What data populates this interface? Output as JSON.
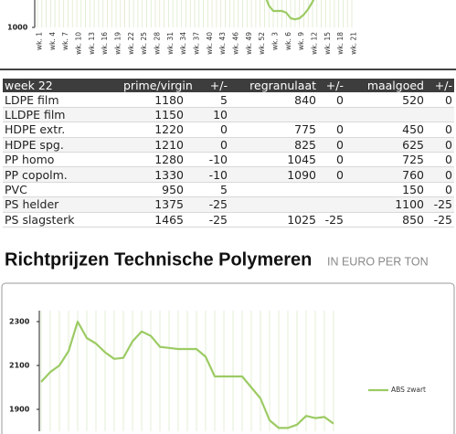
{
  "chart_data": [
    {
      "type": "line",
      "categories": [
        "wk. 1",
        null,
        null,
        "wk. 4",
        null,
        null,
        "wk. 7",
        null,
        null,
        "wk. 10",
        null,
        null,
        "wk. 13",
        null,
        null,
        "wk. 16",
        null,
        null,
        "wk. 19",
        null,
        null,
        "wk. 22",
        null,
        null,
        "wk. 25",
        null,
        null,
        "wk. 28",
        null,
        null,
        "wk. 31",
        null,
        null,
        "wk. 34",
        null,
        null,
        "wk. 37",
        null,
        null,
        "wk. 40",
        null,
        null,
        "wk. 43",
        null,
        null,
        "wk. 46",
        null,
        null,
        "wk. 49",
        null,
        null,
        "wk. 52",
        null,
        null,
        "wk. 3",
        null,
        null,
        "wk. 6",
        null,
        null,
        "wk. 9",
        null,
        null,
        "wk. 12",
        null,
        null,
        "wk. 15",
        null,
        null,
        "wk. 18",
        null,
        null,
        "wk. 21"
      ],
      "series": [
        {
          "color": "#9ccb63",
          "values": [
            null,
            null,
            null,
            null,
            null,
            null,
            null,
            null,
            null,
            null,
            null,
            null,
            null,
            null,
            null,
            null,
            null,
            null,
            null,
            null,
            null,
            null,
            null,
            null,
            null,
            null,
            null,
            null,
            null,
            null,
            null,
            null,
            null,
            null,
            null,
            null,
            null,
            null,
            null,
            null,
            null,
            null,
            null,
            null,
            null,
            null,
            null,
            null,
            null,
            null,
            null,
            null,
            1090,
            1060,
            1045,
            1045,
            1045,
            1040,
            1025,
            1022,
            1025,
            1035,
            1050,
            1070,
            1095,
            null,
            null,
            null,
            null,
            null,
            null,
            null,
            null
          ]
        }
      ],
      "ylim": [
        1000,
        1250
      ],
      "yticks": [
        1000
      ]
    },
    {
      "type": "line",
      "series": [
        {
          "name": "ABS zwart",
          "color": "#9ccb63",
          "values": [
            2025,
            2070,
            2100,
            2165,
            2300,
            2225,
            2200,
            2160,
            2130,
            2135,
            2210,
            2255,
            2235,
            2185,
            2180,
            2175,
            2175,
            2175,
            2140,
            2050,
            2050,
            2050,
            2050,
            2000,
            1950,
            1850,
            1815,
            1815,
            1830,
            1870,
            1860,
            1865,
            1835
          ]
        }
      ],
      "ylim": [
        1800,
        2350
      ],
      "yticks": [
        1900,
        2100,
        2300
      ]
    }
  ],
  "table": {
    "header": [
      "week 22",
      "prime/virgin",
      "+/-",
      "regranulaat",
      "+/-",
      "maalgoed",
      "+/-"
    ],
    "rows": [
      [
        "LDPE film",
        1180,
        5,
        840,
        0,
        520,
        0
      ],
      [
        "LLDPE film",
        1150,
        10,
        null,
        null,
        null,
        null
      ],
      [
        "HDPE extr.",
        1220,
        0,
        775,
        0,
        450,
        0
      ],
      [
        "HDPE spg.",
        1210,
        0,
        825,
        0,
        625,
        0
      ],
      [
        "PP homo",
        1280,
        -10,
        1045,
        0,
        725,
        0
      ],
      [
        "PP copolm.",
        1330,
        -10,
        1090,
        0,
        760,
        0
      ],
      [
        "PVC",
        950,
        5,
        null,
        null,
        150,
        0
      ],
      [
        "PS helder",
        1375,
        -25,
        null,
        null,
        1100,
        -25
      ],
      [
        "PS slagsterk",
        1465,
        -25,
        1025,
        -25,
        850,
        -25
      ]
    ]
  },
  "heading": {
    "title": "Richtprijzen Technische Polymeren",
    "subtitle": "IN EURO PER TON"
  }
}
